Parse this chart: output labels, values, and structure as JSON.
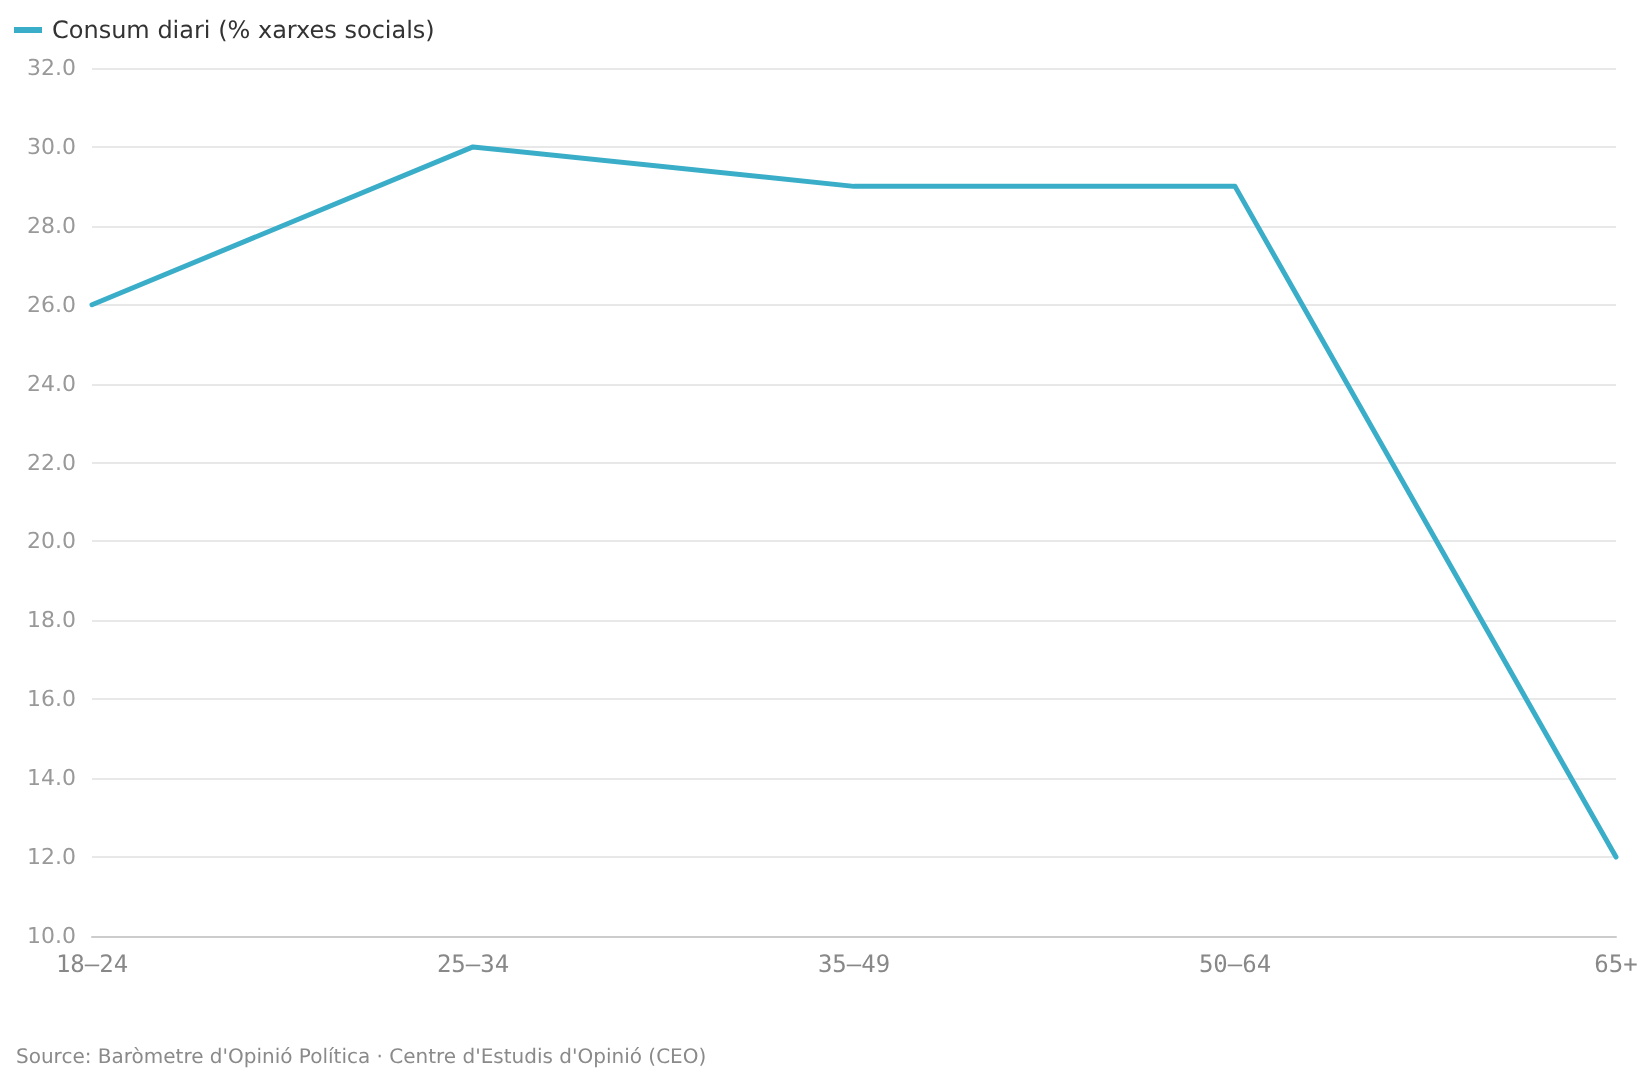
{
  "chart_data": {
    "type": "line",
    "categories": [
      "18–24",
      "25–34",
      "35–49",
      "50–64",
      "65+"
    ],
    "series": [
      {
        "name": "Consum diari (% xarxes socials)",
        "color": "#3aaec8",
        "values": [
          26,
          30,
          29,
          29,
          12
        ]
      }
    ],
    "ylim": [
      10,
      32
    ],
    "yticks": [
      {
        "value": 10,
        "label": "10.0"
      },
      {
        "value": 12,
        "label": "12.0"
      },
      {
        "value": 14,
        "label": "14.0"
      },
      {
        "value": 16,
        "label": "16.0"
      },
      {
        "value": 18,
        "label": "18.0"
      },
      {
        "value": 20,
        "label": "20.0"
      },
      {
        "value": 22,
        "label": "22.0"
      },
      {
        "value": 24,
        "label": "24.0"
      },
      {
        "value": 26,
        "label": "26.0"
      },
      {
        "value": 28,
        "label": "28.0"
      },
      {
        "value": 30,
        "label": "30.0"
      },
      {
        "value": 32,
        "label": "32.0"
      }
    ],
    "grid": "y",
    "legend": "top left",
    "marker": "none",
    "line_style": "solid",
    "annotations": [
      "Source: Baròmetre d'Opinió Política · Centre d'Estudis d'Opinió (CEO)"
    ]
  }
}
